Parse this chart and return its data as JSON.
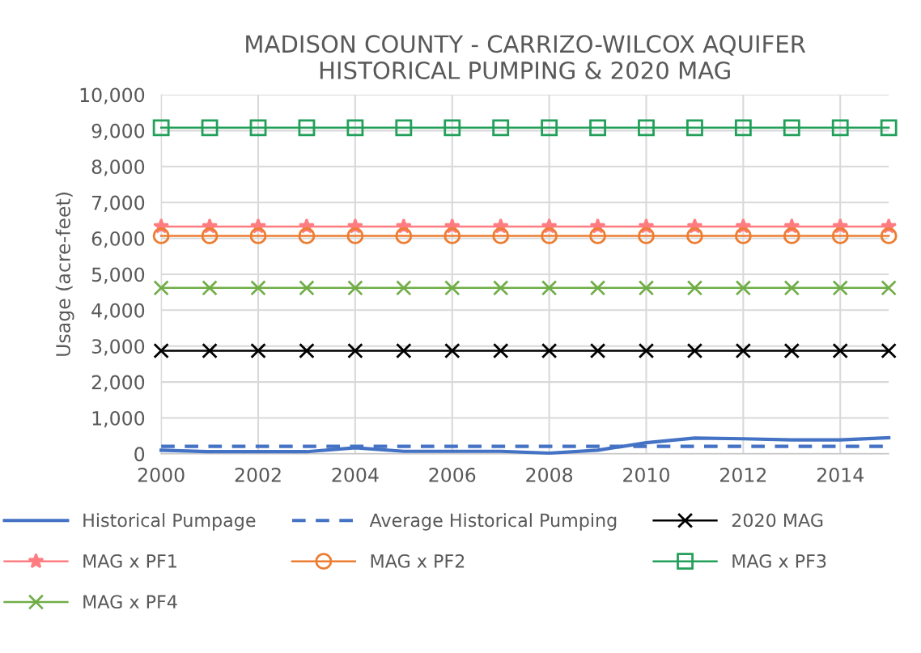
{
  "chart_data": {
    "type": "line",
    "title": "MADISON COUNTY - CARRIZO-WILCOX AQUIFER\nHISTORICAL PUMPING & 2020 MAG",
    "ylabel": "Usage (acre-feet)",
    "x": [
      2000,
      2001,
      2002,
      2003,
      2004,
      2005,
      2006,
      2007,
      2008,
      2009,
      2010,
      2011,
      2012,
      2013,
      2014,
      2015
    ],
    "xlim": [
      2000,
      2015
    ],
    "xticks": [
      2000,
      2002,
      2004,
      2006,
      2008,
      2010,
      2012,
      2014
    ],
    "ylim": [
      0,
      10000
    ],
    "yticks": [
      {
        "value": 0,
        "label": "0"
      },
      {
        "value": 1000,
        "label": "1,000"
      },
      {
        "value": 2000,
        "label": "2,000"
      },
      {
        "value": 3000,
        "label": "3,000"
      },
      {
        "value": 4000,
        "label": "4,000"
      },
      {
        "value": 5000,
        "label": "5,000"
      },
      {
        "value": 6000,
        "label": "6,000"
      },
      {
        "value": 7000,
        "label": "7,000"
      },
      {
        "value": 8000,
        "label": "8,000"
      },
      {
        "value": 9000,
        "label": "9,000"
      },
      {
        "value": 10000,
        "label": "10,000"
      }
    ],
    "grid": true,
    "legend": "bottom",
    "series": [
      {
        "name": "Historical Pumpage",
        "color": "#4472c4",
        "line_style": "solid",
        "marker": "none",
        "values": [
          100,
          60,
          60,
          60,
          170,
          70,
          70,
          70,
          20,
          100,
          310,
          440,
          420,
          390,
          390,
          450
        ]
      },
      {
        "name": "Average Historical Pumping",
        "color": "#4472c4",
        "line_style": "dashed",
        "marker": "none",
        "values": [
          210,
          210,
          210,
          210,
          210,
          210,
          210,
          210,
          210,
          210,
          210,
          210,
          210,
          210,
          210,
          210
        ]
      },
      {
        "name": "2020 MAG",
        "color": "#000000",
        "line_style": "solid",
        "marker": "cross",
        "values": [
          2870,
          2870,
          2870,
          2870,
          2870,
          2870,
          2870,
          2870,
          2870,
          2870,
          2870,
          2870,
          2870,
          2870,
          2870,
          2870
        ]
      },
      {
        "name": "MAG x PF1",
        "color": "#ff7c80",
        "line_style": "solid",
        "marker": "star",
        "values": [
          6330,
          6330,
          6330,
          6330,
          6330,
          6330,
          6330,
          6330,
          6330,
          6330,
          6330,
          6330,
          6330,
          6330,
          6330,
          6330
        ]
      },
      {
        "name": "MAG x PF2",
        "color": "#ed7d31",
        "line_style": "solid",
        "marker": "circle",
        "values": [
          6070,
          6070,
          6070,
          6070,
          6070,
          6070,
          6070,
          6070,
          6070,
          6070,
          6070,
          6070,
          6070,
          6070,
          6070,
          6070
        ]
      },
      {
        "name": "MAG x PF3",
        "color": "#22a05a",
        "line_style": "solid",
        "marker": "square",
        "values": [
          9080,
          9080,
          9080,
          9080,
          9080,
          9080,
          9080,
          9080,
          9080,
          9080,
          9080,
          9080,
          9080,
          9080,
          9080,
          9080
        ]
      },
      {
        "name": "MAG x PF4",
        "color": "#70ad47",
        "line_style": "solid",
        "marker": "cross",
        "values": [
          4620,
          4620,
          4620,
          4620,
          4620,
          4620,
          4620,
          4620,
          4620,
          4620,
          4620,
          4620,
          4620,
          4620,
          4620,
          4620
        ]
      }
    ]
  }
}
